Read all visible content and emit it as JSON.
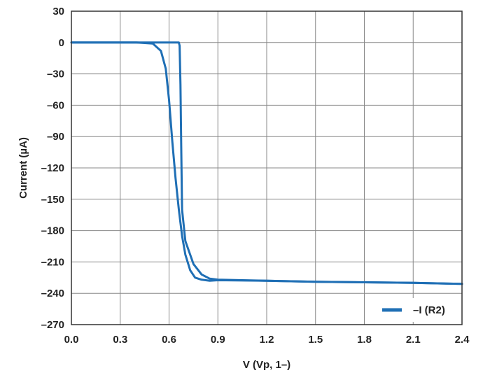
{
  "chart_data": {
    "type": "line",
    "xlabel": "V (Vp, 1–)",
    "ylabel": "Current (µA)",
    "xlim": [
      0.0,
      2.4
    ],
    "ylim": [
      -270,
      30
    ],
    "xticks": [
      "0.0",
      "0.3",
      "0.6",
      "0.9",
      "1.2",
      "1.5",
      "1.8",
      "2.1",
      "2.4"
    ],
    "yticks": [
      "30",
      "0",
      "–30",
      "–60",
      "–90",
      "–120",
      "–150",
      "–180",
      "–210",
      "–240",
      "–270"
    ],
    "grid": true,
    "legend_position": "bottom-right",
    "series": [
      {
        "name": "–I (R2)",
        "color": "#1f6fb5",
        "x": [
          0.0,
          0.2,
          0.4,
          0.5,
          0.55,
          0.58,
          0.6,
          0.62,
          0.64,
          0.66,
          0.68,
          0.7,
          0.73,
          0.76,
          0.8,
          0.85,
          0.9,
          1.2,
          1.5,
          1.8,
          2.1,
          2.4
        ],
        "y": [
          0,
          0,
          0,
          -1,
          -8,
          -25,
          -55,
          -95,
          -130,
          -160,
          -185,
          -203,
          -218,
          -225,
          -227,
          -228,
          -227.5,
          -228,
          -229,
          -229.5,
          -230,
          -231
        ]
      },
      {
        "name": "",
        "color": "#1f6fb5",
        "x": [
          0.0,
          0.4,
          0.6,
          0.66,
          0.665,
          0.67,
          0.675,
          0.68,
          0.7,
          0.75,
          0.8,
          0.85,
          0.9,
          1.2,
          1.5,
          1.8,
          2.1,
          2.4
        ],
        "y": [
          0,
          0,
          0,
          0,
          -3,
          -40,
          -100,
          -160,
          -190,
          -212,
          -222,
          -226,
          -227,
          -228,
          -229,
          -229.5,
          -230,
          -231
        ]
      }
    ]
  }
}
